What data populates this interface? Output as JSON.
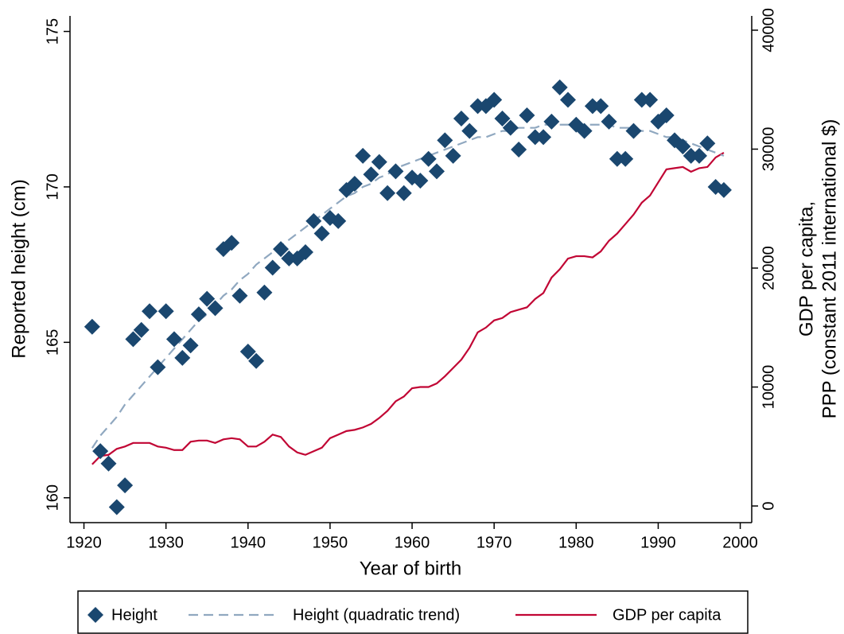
{
  "chart_data": {
    "type": "combo",
    "xlabel": "Year of birth",
    "ylabel": "Reported height (cm)",
    "y2label": [
      "GDP per capita,",
      "PPP (constant 2011 international $)"
    ],
    "xlim": [
      1918.3,
      2001.4
    ],
    "xticks": [
      1920,
      1930,
      1940,
      1950,
      1960,
      1970,
      1980,
      1990,
      2000
    ],
    "ylim": [
      159.2,
      175.5
    ],
    "yticks": [
      160,
      165,
      170,
      175
    ],
    "y2lim": [
      -1400,
      41200
    ],
    "y2ticks": [
      0,
      10000,
      20000,
      30000,
      40000
    ],
    "x": [
      1921,
      1922,
      1923,
      1924,
      1925,
      1926,
      1927,
      1928,
      1929,
      1930,
      1931,
      1932,
      1933,
      1934,
      1935,
      1936,
      1937,
      1938,
      1939,
      1940,
      1941,
      1942,
      1943,
      1944,
      1945,
      1946,
      1947,
      1948,
      1949,
      1950,
      1951,
      1952,
      1953,
      1954,
      1955,
      1956,
      1957,
      1958,
      1959,
      1960,
      1961,
      1962,
      1963,
      1964,
      1965,
      1966,
      1967,
      1968,
      1969,
      1970,
      1971,
      1972,
      1973,
      1974,
      1975,
      1976,
      1977,
      1978,
      1979,
      1980,
      1981,
      1982,
      1983,
      1984,
      1985,
      1986,
      1987,
      1988,
      1989,
      1990,
      1991,
      1992,
      1993,
      1994,
      1995,
      1996,
      1997,
      1998
    ],
    "series": [
      {
        "name": "Height",
        "kind": "marker",
        "color": "#1a476f",
        "values": [
          165.5,
          161.5,
          161.1,
          159.7,
          160.4,
          165.1,
          165.4,
          166.0,
          164.2,
          166.0,
          165.1,
          164.5,
          164.9,
          165.9,
          166.4,
          166.1,
          168.0,
          168.2,
          166.5,
          164.7,
          164.4,
          166.6,
          167.4,
          168.0,
          167.7,
          167.7,
          167.9,
          168.9,
          168.5,
          169.0,
          168.9,
          169.9,
          170.1,
          171.0,
          170.4,
          170.8,
          169.8,
          170.5,
          169.8,
          170.3,
          170.2,
          170.9,
          170.5,
          171.5,
          171.0,
          172.2,
          171.8,
          172.6,
          172.6,
          172.8,
          172.2,
          171.9,
          171.2,
          172.3,
          171.6,
          171.6,
          172.1,
          173.2,
          172.8,
          172.0,
          171.8,
          172.6,
          172.6,
          172.1,
          170.9,
          170.9,
          171.8,
          172.8,
          172.8,
          172.1,
          172.3,
          171.5,
          171.3,
          171.0,
          171.0,
          171.4,
          170.0,
          169.9
        ]
      },
      {
        "name": "Height (quadratic trend)",
        "kind": "dashed",
        "color": "#90a8c0",
        "values": [
          161.6,
          162.0,
          162.3,
          162.6,
          163.0,
          163.3,
          163.6,
          163.9,
          164.2,
          164.5,
          164.8,
          165.1,
          165.4,
          165.7,
          165.9,
          166.2,
          166.5,
          166.7,
          167.0,
          167.2,
          167.5,
          167.7,
          167.9,
          168.1,
          168.3,
          168.5,
          168.7,
          168.9,
          169.1,
          169.3,
          169.5,
          169.7,
          169.8,
          170.0,
          170.1,
          170.3,
          170.4,
          170.6,
          170.7,
          170.8,
          170.9,
          171.0,
          171.1,
          171.2,
          171.3,
          171.4,
          171.5,
          171.6,
          171.6,
          171.7,
          171.8,
          171.8,
          171.9,
          171.9,
          171.9,
          172.0,
          172.0,
          172.0,
          172.0,
          172.0,
          172.0,
          172.0,
          172.0,
          172.0,
          171.9,
          171.9,
          171.9,
          171.8,
          171.8,
          171.7,
          171.6,
          171.6,
          171.5,
          171.4,
          171.3,
          171.2,
          171.1,
          171.0
        ]
      },
      {
        "name": "GDP per capita",
        "kind": "line",
        "axis": "y2",
        "color": "#c10534",
        "values": [
          3500,
          4200,
          4300,
          4800,
          5000,
          5300,
          5300,
          5300,
          5000,
          4900,
          4700,
          4700,
          5400,
          5500,
          5500,
          5300,
          5600,
          5700,
          5600,
          5000,
          5000,
          5400,
          6000,
          5800,
          5000,
          4500,
          4300,
          4600,
          4900,
          5700,
          6000,
          6300,
          6400,
          6600,
          6900,
          7400,
          8000,
          8800,
          9200,
          9900,
          10000,
          10000,
          10300,
          10900,
          11600,
          12300,
          13300,
          14600,
          15000,
          15600,
          15800,
          16300,
          16500,
          16700,
          17400,
          17900,
          19200,
          19900,
          20800,
          21000,
          21000,
          20900,
          21400,
          22300,
          22900,
          23700,
          24500,
          25500,
          26100,
          27200,
          28300,
          28400,
          28500,
          28100,
          28400,
          28500,
          29300,
          29700
        ]
      }
    ]
  }
}
